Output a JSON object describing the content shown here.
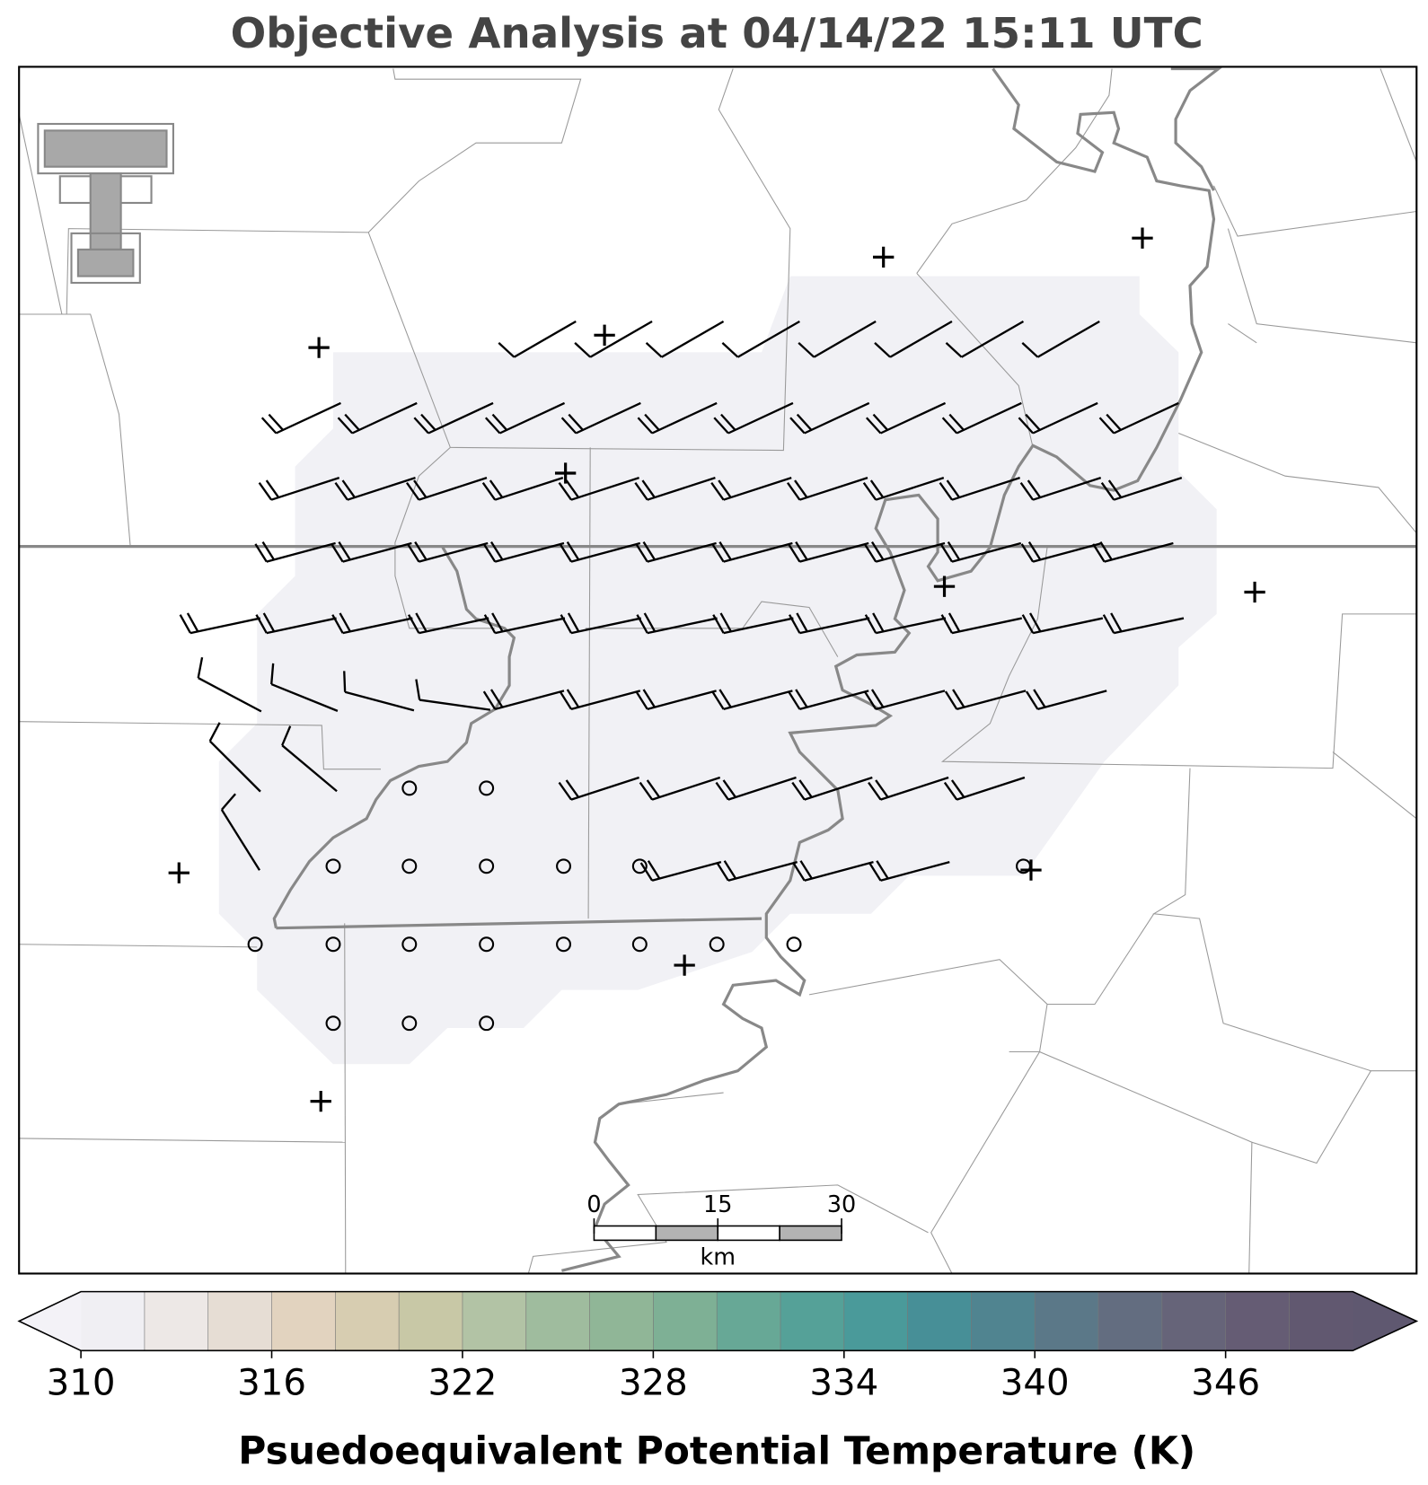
{
  "title": "Objective Analysis at 04/14/22 15:11 UTC",
  "scale_bar": {
    "ticks": [
      0,
      15,
      30
    ],
    "unit": "km"
  },
  "colorbar": {
    "label": "Psuedoequivalent Potential Temperature (K)",
    "lim": [
      310,
      350
    ],
    "ticks": [
      310,
      316,
      322,
      328,
      334,
      340,
      346
    ],
    "under_color": "#f3f2f7",
    "over_color": "#5f5870",
    "colors": [
      "#f0eff3",
      "#ede8e6",
      "#e6ddd4",
      "#e2d3bf",
      "#d7cdb1",
      "#c8c8a6",
      "#b2c3a5",
      "#9fbc9e",
      "#90b697",
      "#7eb095",
      "#67a896",
      "#55a198",
      "#4a9a9a",
      "#478f97",
      "#508490",
      "#5b7888",
      "#636d80",
      "#666479",
      "#655c74",
      "#615870"
    ]
  }
}
